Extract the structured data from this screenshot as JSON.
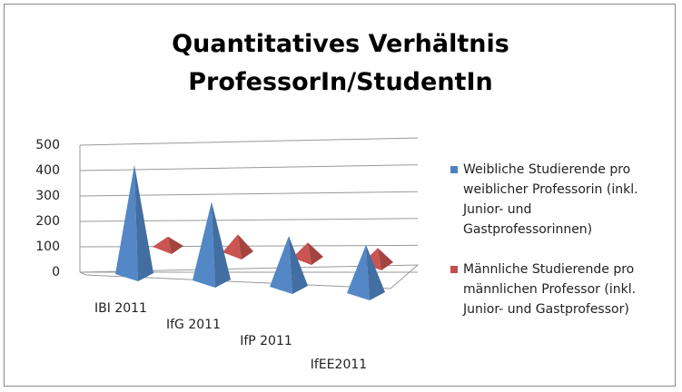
{
  "chart_data": {
    "type": "pyramid3d",
    "title": "Quantitatives Verhältnis ProfessorIn/StudentIn",
    "categories": [
      "IBI 2011",
      "IfG 2011",
      "IfP 2011",
      "IfEE2011"
    ],
    "series": [
      {
        "name": "Weibliche Studierende pro weiblicher Professorin (inkl. Junior- und Gastprofessorinnen)",
        "color": "#4f81bd",
        "values": [
          430,
          310,
          200,
          190
        ]
      },
      {
        "name": "Männliche Studierende pro männlichen Professor (inkl. Junior- und Gastprofessor)",
        "color": "#c0504d",
        "values": [
          40,
          70,
          60,
          60
        ]
      }
    ],
    "ylim": [
      0,
      500
    ],
    "yticks": [
      0,
      100,
      200,
      300,
      400,
      500
    ],
    "grid": true
  }
}
